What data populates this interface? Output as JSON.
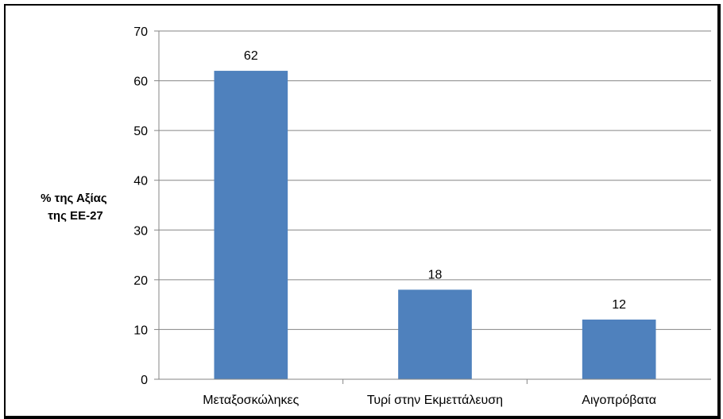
{
  "chart_data": {
    "type": "bar",
    "categories": [
      "Μεταξοσκώληκες",
      "Τυρί στην Εκμεττάλευση",
      "Αιγοπρόβατα"
    ],
    "values": [
      62,
      18,
      12
    ],
    "data_labels": [
      "62",
      "18",
      "12"
    ],
    "title": "",
    "xlabel": "",
    "ylabel": [
      "% της Αξίας",
      "της ΕΕ-27"
    ],
    "ylim": [
      0,
      70
    ],
    "yticks": [
      0,
      10,
      20,
      30,
      40,
      50,
      60,
      70
    ],
    "grid": true,
    "legend": "none",
    "bar_color": "#4F81BD"
  }
}
